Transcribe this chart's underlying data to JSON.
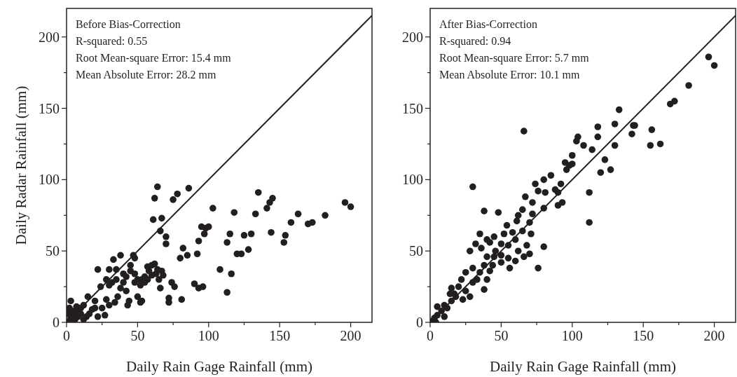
{
  "chart_data": [
    {
      "type": "scatter",
      "annotations": [
        "Before Bias-Correction",
        "R-squared: 0.55",
        "Root Mean-square Error: 15.4 mm",
        "Mean Absolute Error: 28.2 mm"
      ],
      "xlabel": "Daily Rain Gage Rainfall (mm)",
      "ylabel": "Daily Radar Rainfall (mm)",
      "xlim": [
        0,
        215
      ],
      "ylim": [
        0,
        220
      ],
      "xticks": [
        0,
        {
          "value": 25,
          "label": null
        },
        50,
        {
          "value": 75,
          "label": null
        },
        100,
        {
          "value": 125,
          "label": null
        },
        150,
        {
          "value": 175,
          "label": null
        },
        200
      ],
      "yticks": [
        0,
        {
          "value": 25,
          "label": null
        },
        50,
        {
          "value": 75,
          "label": null
        },
        100,
        {
          "value": 125,
          "label": null
        },
        150,
        {
          "value": 175,
          "label": null
        },
        200
      ],
      "grid": false,
      "marker": "circle",
      "series": [
        {
          "color": "#231f20",
          "x": [
            62,
            64,
            67,
            61,
            66,
            78,
            75,
            86,
            70,
            70,
            82,
            80,
            85,
            93,
            92,
            95,
            97,
            100,
            103,
            98,
            108,
            113,
            115,
            118,
            120,
            123,
            116,
            113,
            125,
            128,
            130,
            133,
            135,
            141,
            143,
            145,
            144,
            153,
            154,
            158,
            163,
            170,
            173,
            182,
            196,
            200,
            81,
            72,
            72,
            74,
            76,
            62,
            64,
            67,
            68,
            57,
            55,
            53,
            57,
            45,
            47,
            48,
            40,
            38,
            33,
            30,
            22,
            35,
            40,
            42,
            44,
            43,
            50,
            52,
            53,
            48,
            28,
            25,
            18,
            15,
            30,
            20,
            12,
            10,
            8,
            5,
            3,
            2,
            4,
            6,
            8,
            10,
            14,
            16,
            20,
            3,
            24,
            28,
            32,
            35,
            38,
            42,
            45,
            48,
            50,
            52,
            55,
            60,
            63,
            65,
            66,
            90,
            93,
            96,
            58,
            60,
            36,
            34,
            30,
            27,
            22,
            12,
            7,
            1,
            2
          ],
          "values": [
            87,
            95,
            73,
            72,
            64,
            90,
            86,
            94,
            60,
            55,
            52,
            45,
            47,
            57,
            48,
            67,
            62,
            67,
            80,
            66,
            37,
            56,
            62,
            77,
            48,
            48,
            34,
            21,
            61,
            51,
            62,
            76,
            91,
            80,
            84,
            87,
            63,
            56,
            61,
            70,
            76,
            69,
            70,
            75,
            84,
            81,
            16,
            14,
            17,
            28,
            25,
            41,
            37,
            36,
            33,
            30,
            32,
            30,
            39,
            40,
            47,
            45,
            34,
            47,
            44,
            37,
            37,
            37,
            28,
            22,
            15,
            12,
            18,
            14,
            15,
            28,
            16,
            10,
            9,
            18,
            26,
            15,
            12,
            10,
            8,
            5,
            3,
            1,
            8,
            2,
            4,
            6,
            4,
            6,
            10,
            15,
            25,
            30,
            28,
            30,
            24,
            32,
            36,
            34,
            30,
            26,
            28,
            33,
            34,
            30,
            24,
            27,
            24,
            25,
            36,
            40,
            18,
            14,
            12,
            5,
            4,
            2,
            11,
            6,
            10
          ]
        },
        {
          "type": "line",
          "color": "#231f20",
          "marker": "none",
          "line_style": "solid",
          "x": [
            0,
            215
          ],
          "values": [
            0,
            215
          ]
        }
      ]
    },
    {
      "type": "scatter",
      "annotations": [
        "After Bias-Correction",
        "R-squared: 0.94",
        "Root Mean-square Error: 5.7 mm",
        "Mean Absolute Error: 10.1 mm"
      ],
      "xlabel": "Daily Rain Gage Rainfall (mm)",
      "xlim": [
        0,
        215
      ],
      "ylim": [
        0,
        220
      ],
      "xticks": [
        0,
        {
          "value": 25,
          "label": null
        },
        50,
        {
          "value": 75,
          "label": null
        },
        100,
        {
          "value": 125,
          "label": null
        },
        150,
        {
          "value": 175,
          "label": null
        },
        200
      ],
      "yticks": [
        0,
        {
          "value": 25,
          "label": null
        },
        50,
        {
          "value": 75,
          "label": null
        },
        100,
        {
          "value": 125,
          "label": null
        },
        150,
        {
          "value": 175,
          "label": null
        },
        200
      ],
      "grid": false,
      "marker": "circle",
      "series": [
        {
          "color": "#231f20",
          "x": [
            196,
            200,
            182,
            172,
            169,
            162,
            155,
            156,
            143,
            144,
            142,
            133,
            130,
            130,
            127,
            123,
            118,
            118,
            120,
            114,
            112,
            112,
            108,
            104,
            103,
            100,
            100,
            98,
            95,
            96,
            92,
            90,
            90,
            93,
            88,
            85,
            81,
            80,
            80,
            74,
            76,
            72,
            72,
            70,
            71,
            67,
            66,
            65,
            62,
            61,
            65,
            58,
            54,
            48,
            52,
            45,
            50,
            42,
            40,
            38,
            30,
            35,
            32,
            28,
            36,
            40,
            46,
            55,
            60,
            62,
            55,
            50,
            45,
            38,
            35,
            30,
            25,
            22,
            20,
            17,
            15,
            12,
            8,
            5,
            3,
            2,
            5,
            10,
            14,
            18,
            15,
            25,
            30,
            33,
            40,
            38,
            44,
            50,
            56,
            66,
            68,
            80,
            70,
            76,
            60,
            42,
            28,
            23,
            10,
            4
          ],
          "values": [
            186,
            180,
            166,
            155,
            153,
            125,
            124,
            135,
            138,
            138,
            132,
            149,
            139,
            124,
            107,
            114,
            137,
            130,
            105,
            121,
            91,
            70,
            124,
            130,
            127,
            117,
            111,
            110,
            112,
            107,
            97,
            91,
            82,
            84,
            93,
            103,
            91,
            100,
            80,
            97,
            92,
            84,
            76,
            70,
            62,
            88,
            134,
            79,
            75,
            71,
            64,
            63,
            68,
            77,
            62,
            60,
            55,
            56,
            58,
            78,
            95,
            62,
            55,
            50,
            52,
            46,
            50,
            54,
            58,
            50,
            45,
            42,
            46,
            40,
            35,
            38,
            35,
            30,
            25,
            20,
            15,
            10,
            8,
            5,
            3,
            1,
            11,
            12,
            20,
            18,
            24,
            22,
            28,
            30,
            30,
            23,
            40,
            47,
            38,
            46,
            54,
            53,
            48,
            38,
            43,
            36,
            18,
            16,
            4,
            0
          ]
        },
        {
          "type": "line",
          "color": "#231f20",
          "marker": "none",
          "line_style": "solid",
          "x": [
            0,
            215
          ],
          "values": [
            0,
            215
          ]
        }
      ]
    }
  ]
}
